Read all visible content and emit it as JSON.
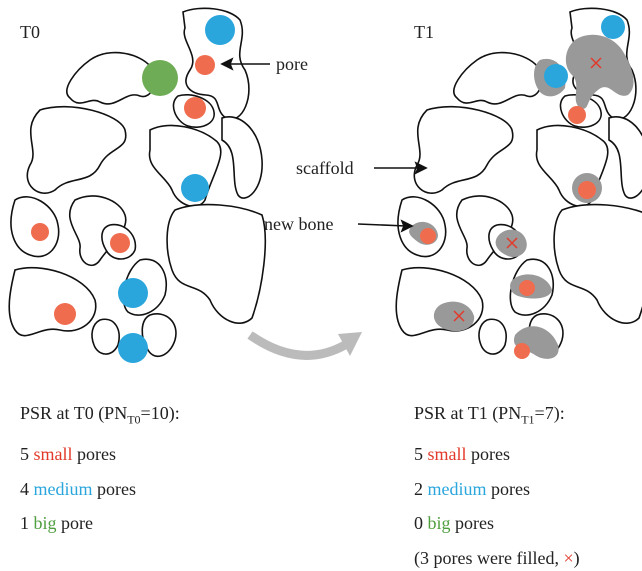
{
  "panels": [
    {
      "label": "T0"
    },
    {
      "label": "T1"
    }
  ],
  "annotations": {
    "pore": "pore",
    "scaffold": "scaffold",
    "new_bone": "new bone"
  },
  "summaries": [
    {
      "heading": {
        "prefix": "PSR at T0 (PN",
        "subscript": "T0",
        "suffix": "=10):"
      },
      "lines": [
        {
          "count": "5",
          "size": "small",
          "unit": "pores"
        },
        {
          "count": "4",
          "size": "medium",
          "unit": "pores"
        },
        {
          "count": "1",
          "size": "big",
          "unit": "pore"
        }
      ]
    },
    {
      "heading": {
        "prefix": "PSR at T1 (PN",
        "subscript": "T1",
        "suffix": "=7):"
      },
      "lines": [
        {
          "count": "5",
          "size": "small",
          "unit": "pores"
        },
        {
          "count": "2",
          "size": "medium",
          "unit": "pores"
        },
        {
          "count": "0",
          "size": "big",
          "unit": "pores"
        }
      ],
      "note": {
        "prefix": "(3 pores were filled, ",
        "marker": "×",
        "suffix": ")"
      }
    }
  ]
}
